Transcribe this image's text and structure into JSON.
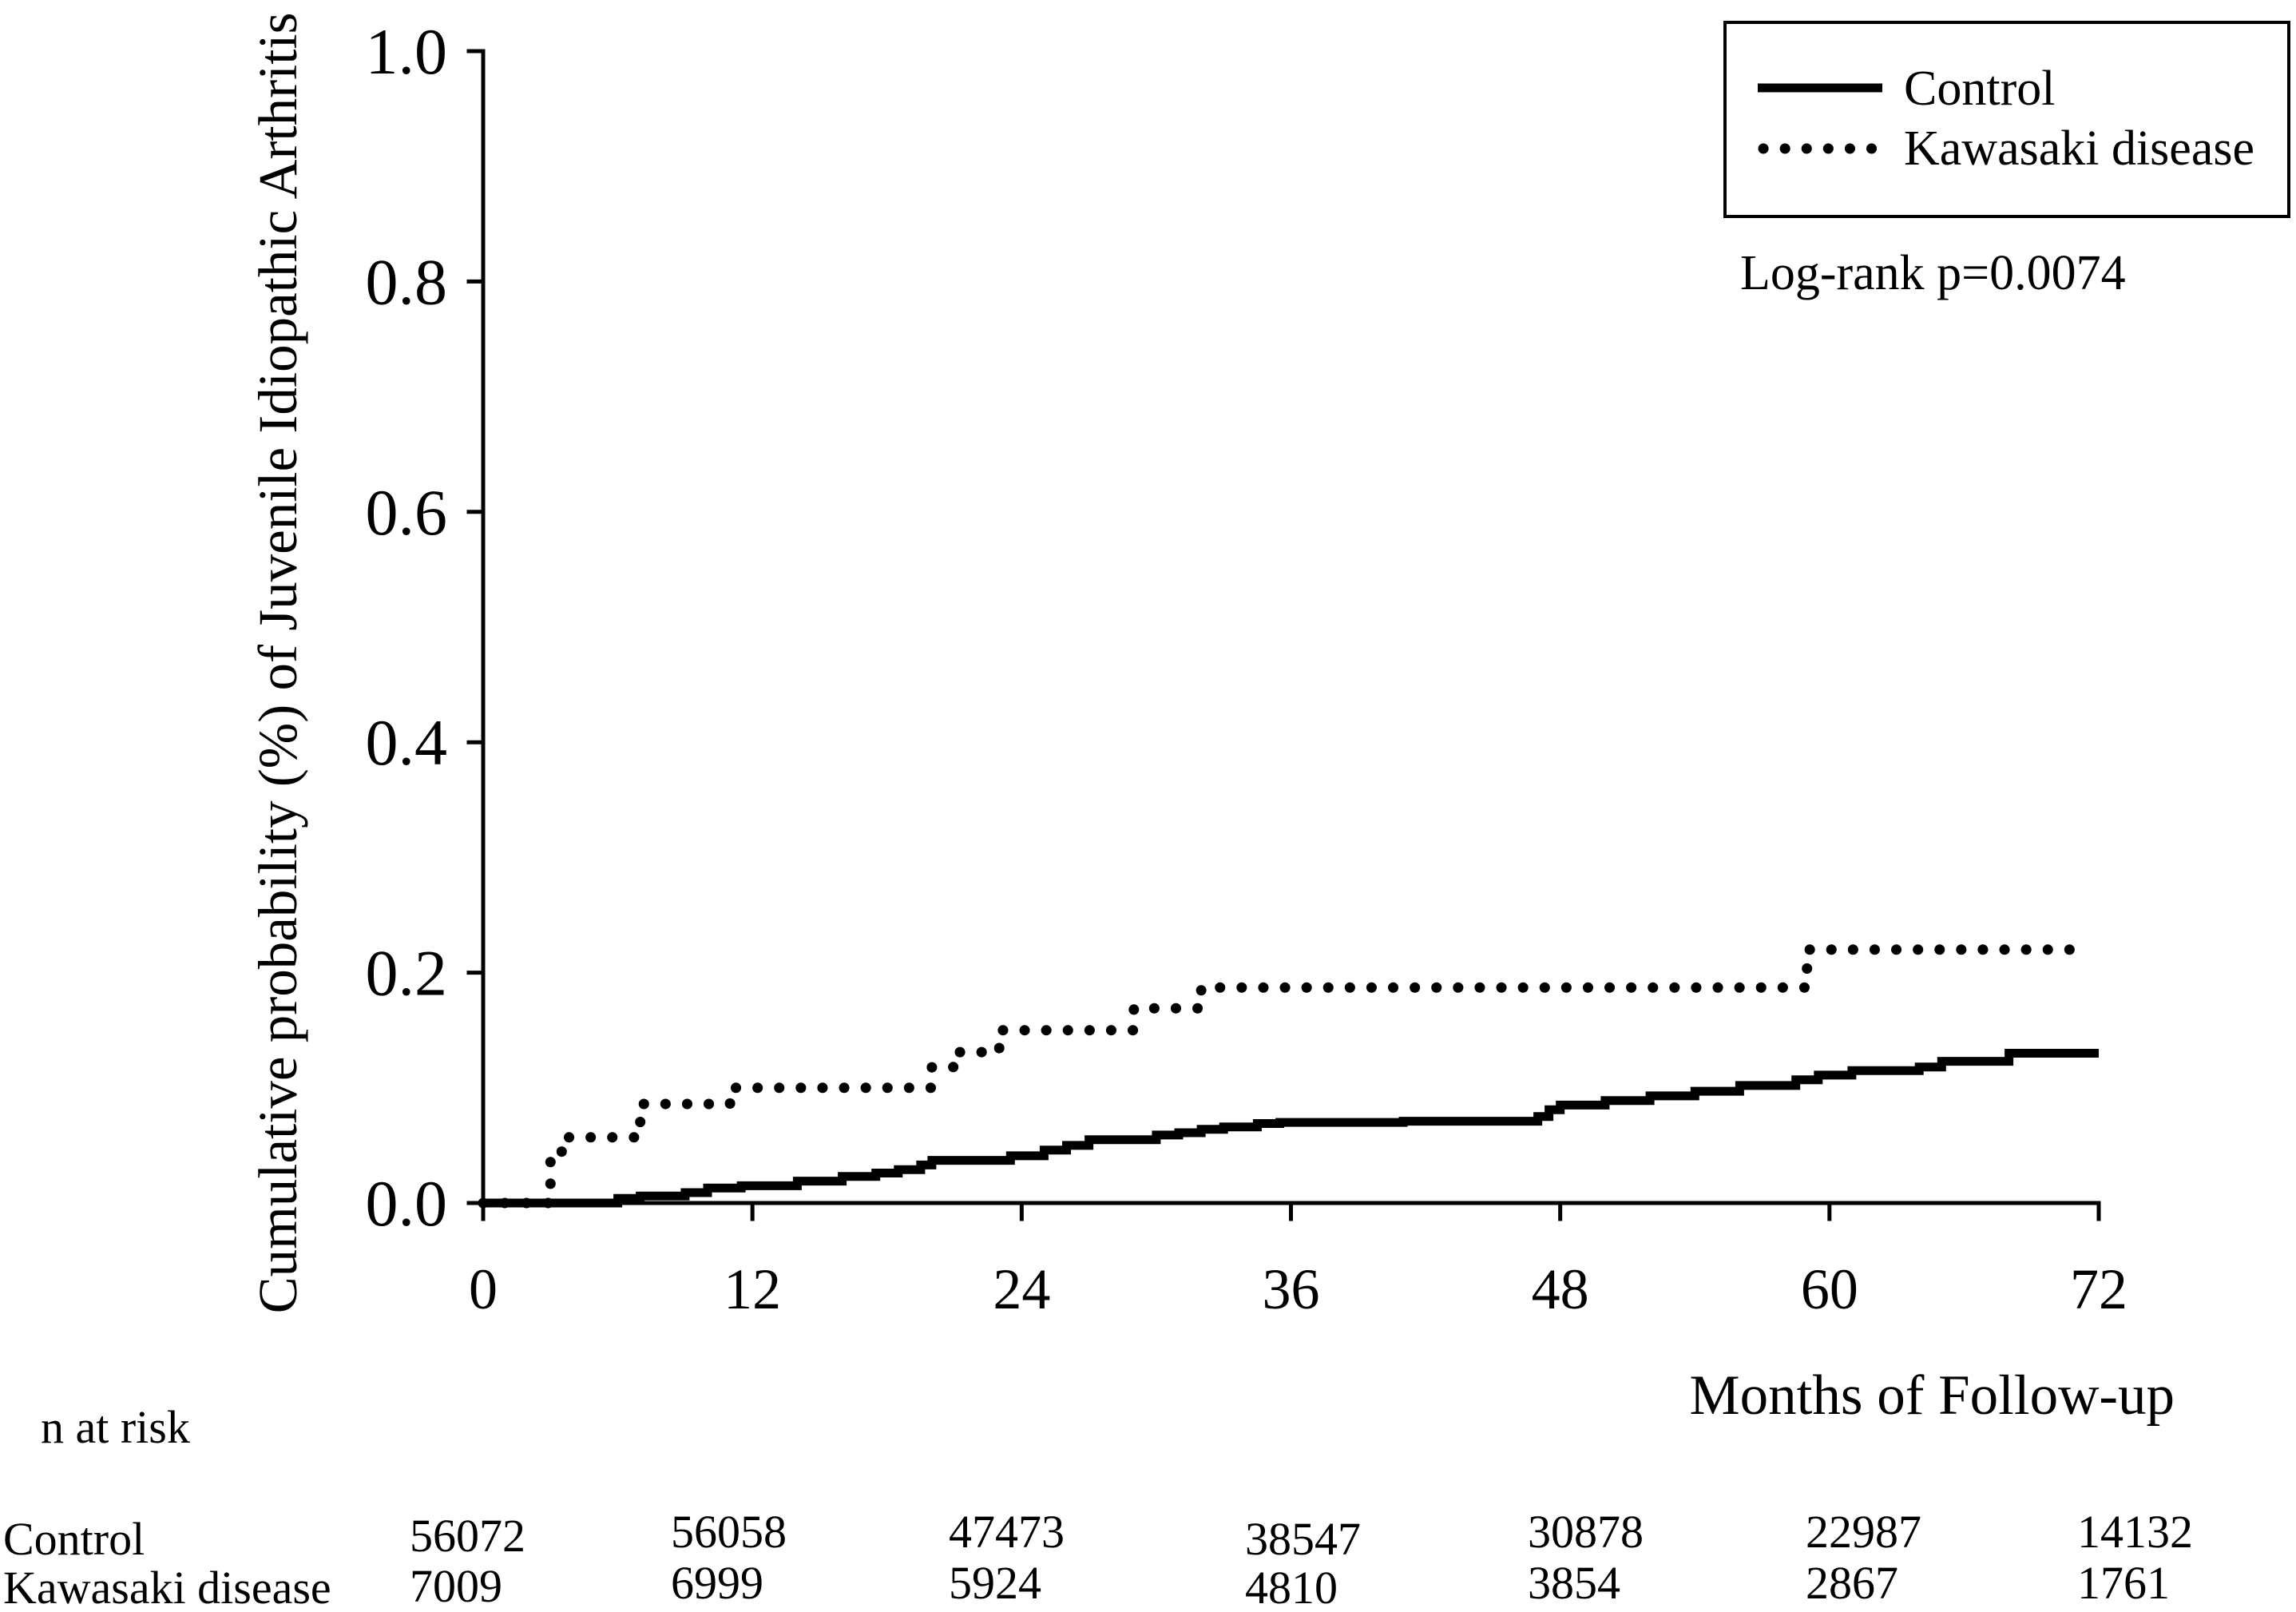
{
  "chart_data": {
    "type": "line",
    "xlabel": "Months of Follow-up",
    "ylabel": "Cumulative probability (%) of Juvenile Idiopathic Arthritis",
    "xlim": [
      0,
      72
    ],
    "ylim": [
      0,
      1.0
    ],
    "xticks": [
      0,
      12,
      24,
      36,
      48,
      60,
      72
    ],
    "yticks": [
      0,
      0.2,
      0.4,
      0.6,
      0.8,
      1.0
    ],
    "ytick_labels": [
      "0.0",
      "0.2",
      "0.4",
      "0.6",
      "0.8",
      "1.0"
    ],
    "grid": false,
    "legend": "top-right",
    "series": [
      {
        "name": "Control",
        "color": "#000000",
        "x": [
          0,
          6,
          7,
          9,
          10,
          11.5,
          14,
          16,
          17.5,
          18.5,
          19.5,
          20,
          23.5,
          25,
          26,
          27,
          30,
          31,
          32,
          33,
          34.5,
          35.5,
          41,
          47,
          47.5,
          48,
          50,
          52,
          54,
          56,
          58.5,
          59.5,
          61,
          64,
          65,
          68,
          72
        ],
        "y": [
          0,
          0.004,
          0.006,
          0.009,
          0.013,
          0.015,
          0.019,
          0.023,
          0.026,
          0.029,
          0.033,
          0.037,
          0.041,
          0.046,
          0.05,
          0.055,
          0.059,
          0.061,
          0.064,
          0.066,
          0.069,
          0.07,
          0.071,
          0.075,
          0.081,
          0.085,
          0.089,
          0.093,
          0.097,
          0.102,
          0.107,
          0.111,
          0.115,
          0.118,
          0.123,
          0.13,
          0.13
        ]
      },
      {
        "name": "Kawasaki disease",
        "color": "#000000",
        "x": [
          0,
          3,
          3.5,
          7,
          11,
          20,
          21,
          23,
          29,
          32,
          59,
          71
        ],
        "y": [
          0,
          0.036,
          0.057,
          0.086,
          0.1,
          0.118,
          0.131,
          0.15,
          0.169,
          0.187,
          0.22,
          0.22
        ]
      }
    ],
    "annotation": "Log-rank p=0.0074",
    "risk_table": {
      "title": "n at risk",
      "rows": [
        {
          "label": "Control",
          "values": [
            56072,
            56058,
            47473,
            38547,
            30878,
            22987,
            14132
          ]
        },
        {
          "label": "Kawasaki disease",
          "values": [
            7009,
            6999,
            5924,
            4810,
            3854,
            2867,
            1761
          ]
        }
      ]
    }
  }
}
